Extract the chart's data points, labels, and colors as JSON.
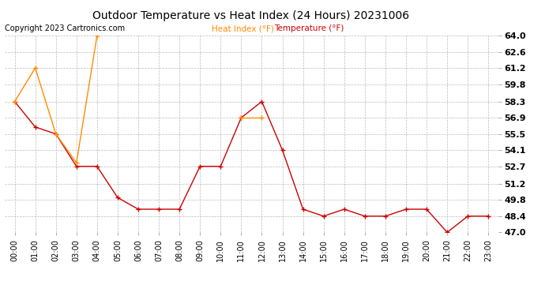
{
  "title": "Outdoor Temperature vs Heat Index (24 Hours) 20231006",
  "copyright": "Copyright 2023 Cartronics.com",
  "legend_heat": "Heat Index (°F)",
  "legend_temp": "Temperature (°F)",
  "hours": [
    "00:00",
    "01:00",
    "02:00",
    "03:00",
    "04:00",
    "05:00",
    "06:00",
    "07:00",
    "08:00",
    "09:00",
    "10:00",
    "11:00",
    "12:00",
    "13:00",
    "14:00",
    "15:00",
    "16:00",
    "17:00",
    "18:00",
    "19:00",
    "20:00",
    "21:00",
    "22:00",
    "23:00"
  ],
  "temperature": [
    58.3,
    56.1,
    55.5,
    52.7,
    52.7,
    50.0,
    49.0,
    49.0,
    49.0,
    52.7,
    52.7,
    56.9,
    58.3,
    54.1,
    49.0,
    48.4,
    49.0,
    48.4,
    48.4,
    49.0,
    49.0,
    47.0,
    48.4,
    48.4
  ],
  "heat_index": [
    58.3,
    61.2,
    55.5,
    53.0,
    64.0,
    null,
    null,
    null,
    null,
    null,
    null,
    56.9,
    56.9,
    null,
    null,
    null,
    null,
    null,
    null,
    null,
    null,
    null,
    null,
    null
  ],
  "ylim_min": 47.0,
  "ylim_max": 64.0,
  "yticks": [
    47.0,
    48.4,
    49.8,
    51.2,
    52.7,
    54.1,
    55.5,
    56.9,
    58.3,
    59.8,
    61.2,
    62.6,
    64.0
  ],
  "temp_color": "#cc0000",
  "heat_color": "#ff8c00",
  "bg_color": "#ffffff",
  "grid_color": "#bbbbbb",
  "title_color": "#000000",
  "copyright_color": "#000000",
  "legend_temp_color": "#cc0000"
}
